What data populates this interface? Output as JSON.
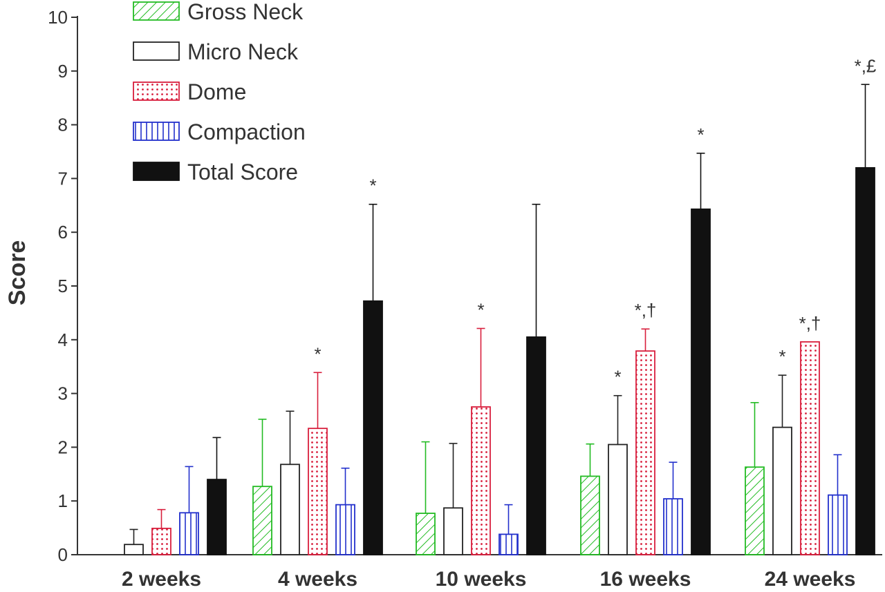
{
  "chart_data": {
    "type": "bar",
    "title": "",
    "xlabel": "",
    "ylabel": "Score",
    "ylim": [
      0,
      10
    ],
    "yticks": [
      "0",
      "1",
      "2",
      "3",
      "4",
      "5",
      "6",
      "7",
      "8",
      "9",
      "10"
    ],
    "categories": [
      "2 weeks",
      "4 weeks",
      "10 weeks",
      "16 weeks",
      "24 weeks"
    ],
    "legend_position": "top-left",
    "grid": false,
    "series": [
      {
        "name": "Gross Neck",
        "pattern": "diagonal-hatch",
        "color": "#22bb22",
        "values": [
          0,
          1.27,
          0.77,
          1.46,
          1.63
        ],
        "errors": [
          0,
          1.25,
          1.33,
          0.6,
          1.2
        ],
        "annotations": [
          "",
          "",
          "",
          "",
          ""
        ]
      },
      {
        "name": "Micro Neck",
        "pattern": "open",
        "color": "#222222",
        "values": [
          0.19,
          1.68,
          0.87,
          2.05,
          2.37
        ],
        "errors": [
          0.28,
          0.99,
          1.2,
          0.91,
          0.97
        ],
        "annotations": [
          "",
          "",
          "",
          "*",
          "*"
        ]
      },
      {
        "name": "Dome",
        "pattern": "dots",
        "color": "#d81e3c",
        "values": [
          0.49,
          2.35,
          2.75,
          3.79,
          3.96
        ],
        "errors": [
          0.35,
          1.04,
          1.46,
          0.41,
          0
        ],
        "annotations": [
          "",
          "*",
          "*",
          "*,†",
          "*,†"
        ]
      },
      {
        "name": "Compaction",
        "pattern": "vertical-lines",
        "color": "#2230cc",
        "values": [
          0.78,
          0.93,
          0.38,
          1.04,
          1.11
        ],
        "errors": [
          0.86,
          0.68,
          0.55,
          0.68,
          0.75
        ],
        "annotations": [
          "",
          "",
          "",
          "",
          ""
        ]
      },
      {
        "name": "Total Score",
        "pattern": "solid",
        "color": "#111111",
        "values": [
          1.4,
          4.72,
          4.05,
          6.43,
          7.2
        ],
        "errors": [
          0.78,
          1.8,
          2.47,
          1.04,
          1.55
        ],
        "annotations": [
          "",
          "*",
          "",
          "*",
          "*,£"
        ]
      }
    ]
  }
}
